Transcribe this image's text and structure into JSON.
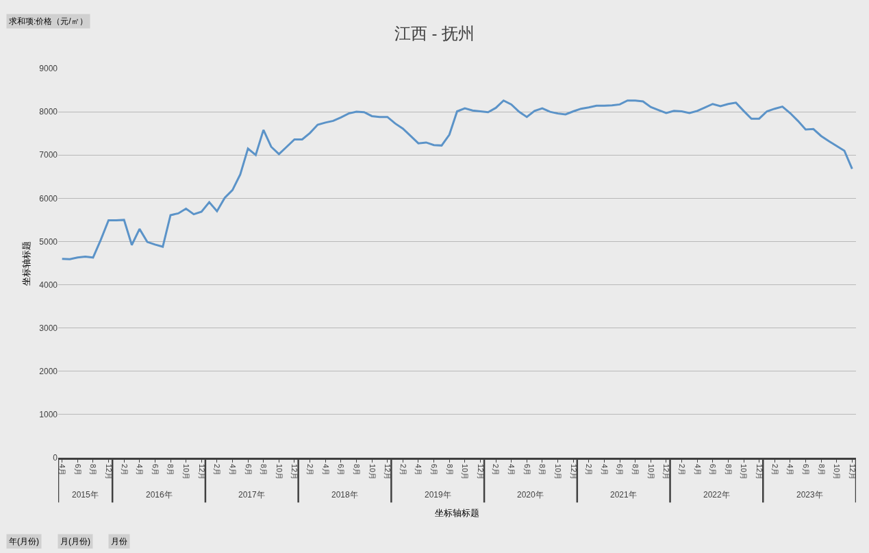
{
  "chart_data": {
    "type": "line",
    "title": "江西 - 抚州",
    "xlabel": "坐标轴标题",
    "ylabel": "坐标轴标题",
    "annotations": [
      "求和项:价格（元/㎡）",
      "年(月份)",
      "月(月份)",
      "月份",
      "2015年",
      "2016年",
      "2017年",
      "2018年",
      "2019年",
      "2020年",
      "2021年",
      "2022年",
      "2023年"
    ],
    "categories": [
      "4月",
      null,
      "6月",
      null,
      "8月",
      null,
      "12月",
      null,
      "2月",
      null,
      "4月",
      null,
      "6月",
      null,
      "8月",
      null,
      "10月",
      null,
      "12月",
      null,
      "2月",
      null,
      "4月",
      null,
      "6月",
      null,
      "8月",
      null,
      "10月",
      null,
      "12月",
      null,
      "2月",
      null,
      "4月",
      null,
      "6月",
      null,
      "8月",
      null,
      "10月",
      null,
      "12月",
      null,
      "2月",
      null,
      "4月",
      null,
      "6月",
      null,
      "8月",
      null,
      "10月",
      null,
      "12月",
      null,
      "2月",
      null,
      "4月",
      null,
      "6月",
      null,
      "8月",
      null,
      "10月",
      null,
      "12月",
      null,
      "2月",
      null,
      "4月",
      null,
      "6月",
      null,
      "8月",
      null,
      "10月",
      null,
      "12月",
      null,
      "2月",
      null,
      "4月",
      null,
      "6月",
      null,
      "8月",
      null,
      "10月",
      null,
      "12月",
      null,
      "2月",
      null,
      "4月",
      null,
      "6月",
      null,
      "8月",
      null,
      "10月",
      null,
      "12月"
    ],
    "series": [
      {
        "color": "#5b93c8",
        "values": [
          4600,
          4590,
          4630,
          4650,
          4630,
          5040,
          5490,
          5490,
          5500,
          4920,
          5290,
          4990,
          4930,
          4880,
          5610,
          5650,
          5760,
          5630,
          5690,
          5910,
          5700,
          6010,
          6190,
          6550,
          7150,
          7000,
          7580,
          7190,
          7020,
          7190,
          7360,
          7360,
          7510,
          7700,
          7750,
          7790,
          7870,
          7960,
          8000,
          7990,
          7900,
          7880,
          7880,
          7730,
          7610,
          7440,
          7270,
          7290,
          7230,
          7220,
          7470,
          8010,
          8080,
          8030,
          8010,
          7990,
          8090,
          8260,
          8170,
          8000,
          7880,
          8020,
          8080,
          8000,
          7960,
          7940,
          8010,
          8070,
          8100,
          8140,
          8140,
          8150,
          8170,
          8260,
          8260,
          8240,
          8110,
          8040,
          7970,
          8020,
          8010,
          7970,
          8020,
          8100,
          8180,
          8130,
          8180,
          8210,
          8020,
          7840,
          7840,
          8010,
          8070,
          8120,
          7970,
          7790,
          7590,
          7600,
          7440,
          7320,
          7210,
          7100,
          6680
        ]
      }
    ],
    "ylim": [
      0,
      9000
    ],
    "yticks": [
      0,
      1000,
      2000,
      3000,
      4000,
      5000,
      6000,
      7000,
      8000,
      9000
    ],
    "grid": "y",
    "marker": "none",
    "line_style": "solid"
  }
}
